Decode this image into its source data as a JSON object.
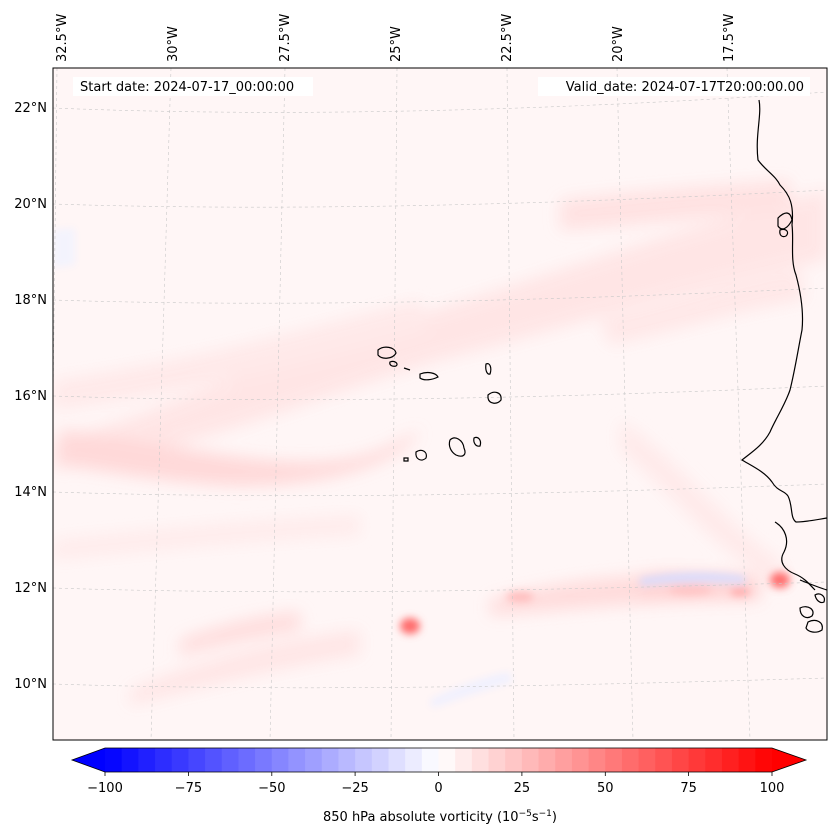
{
  "header": {
    "start_date": "Start date: 2024-07-17_00:00:00",
    "valid_date": "Valid_date: 2024-07-17T20:00:00.00"
  },
  "lon_labels": [
    "32.5°W",
    "30°W",
    "27.5°W",
    "25°W",
    "22.5°W",
    "20°W",
    "17.5°W"
  ],
  "lat_labels": [
    "22°N",
    "20°N",
    "18°N",
    "16°N",
    "14°N",
    "12°N",
    "10°N"
  ],
  "colorbar": {
    "ticks": [
      "−100",
      "−75",
      "−50",
      "−25",
      "0",
      "25",
      "50",
      "75",
      "100"
    ],
    "label_text": "850 hPa absolute vorticity (10",
    "label_exp1": "−5",
    "label_mid": "s",
    "label_exp2": "−1",
    "label_end": ")",
    "min": -100,
    "max": 100,
    "colors": {
      "negative": "#0000ff",
      "zero": "#ffffff",
      "positive": "#ff0000"
    }
  }
}
